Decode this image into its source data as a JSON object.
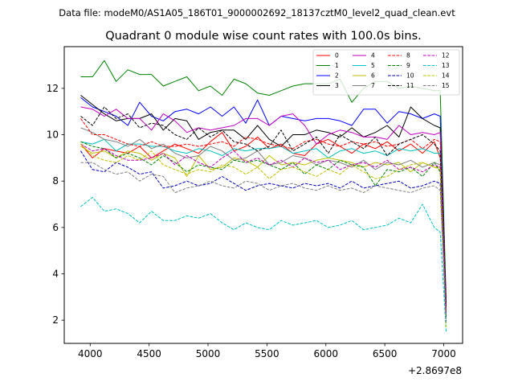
{
  "chart_data": {
    "type": "line",
    "suptitle": "Data file: modeM0/AS1A05_186T01_9000002692_18137cztM0_level2_quad_clean.evt",
    "title": "Quadrant 0 module wise count rates with 100.0s bins.",
    "xlabel": "",
    "ylabel": "",
    "x_offset_label": "+2.8697e8",
    "xlim": [
      3780,
      7160
    ],
    "ylim": [
      1.0,
      13.8
    ],
    "xticks": [
      4000,
      4500,
      5000,
      5500,
      6000,
      6500,
      7000
    ],
    "yticks": [
      2,
      4,
      6,
      8,
      10,
      12
    ],
    "x": [
      3920,
      4020,
      4120,
      4220,
      4320,
      4420,
      4520,
      4620,
      4720,
      4820,
      4920,
      5020,
      5120,
      5220,
      5320,
      5420,
      5520,
      5620,
      5720,
      5820,
      5920,
      6020,
      6120,
      6220,
      6320,
      6420,
      6520,
      6620,
      6720,
      6820,
      6920,
      6970,
      7020
    ],
    "legend_position": "upper right",
    "series": [
      {
        "name": "0",
        "color": "#ff0000",
        "dash": "solid",
        "values": [
          9.6,
          9.0,
          9.4,
          9.3,
          9.2,
          9.5,
          9.0,
          9.3,
          9.6,
          9.4,
          9.2,
          9.7,
          10.1,
          9.3,
          9.5,
          9.9,
          9.4,
          9.6,
          9.2,
          9.1,
          9.6,
          9.8,
          9.5,
          9.2,
          9.6,
          9.4,
          9.7,
          9.3,
          9.6,
          9.2,
          9.7,
          9.0,
          2.5
        ]
      },
      {
        "name": "1",
        "color": "#008000",
        "dash": "solid",
        "values": [
          12.5,
          12.5,
          13.2,
          12.3,
          12.8,
          12.6,
          12.6,
          12.1,
          12.3,
          12.5,
          11.9,
          12.1,
          11.7,
          12.4,
          12.2,
          11.8,
          11.7,
          11.9,
          12.1,
          12.2,
          12.2,
          12.2,
          12.4,
          11.4,
          12.0,
          12.3,
          12.3,
          12.0,
          12.1,
          12.0,
          11.9,
          11.9,
          2.9
        ]
      },
      {
        "name": "2",
        "color": "#0000ff",
        "dash": "solid",
        "values": [
          11.6,
          11.2,
          11.0,
          10.8,
          10.4,
          11.4,
          10.8,
          10.6,
          11.0,
          11.1,
          10.9,
          11.2,
          10.8,
          11.2,
          10.5,
          11.5,
          10.4,
          10.8,
          10.7,
          10.6,
          10.7,
          10.7,
          10.6,
          10.4,
          11.1,
          11.1,
          10.5,
          11.0,
          10.9,
          10.7,
          10.9,
          10.8,
          2.6
        ]
      },
      {
        "name": "3",
        "color": "#000000",
        "dash": "solid",
        "values": [
          11.7,
          11.3,
          10.9,
          10.6,
          10.7,
          10.7,
          10.9,
          10.2,
          10.7,
          10.6,
          9.8,
          10.1,
          10.2,
          10.2,
          9.8,
          10.4,
          9.8,
          9.5,
          10.0,
          10.0,
          10.2,
          10.1,
          9.9,
          10.3,
          9.9,
          10.1,
          10.4,
          9.9,
          11.2,
          10.7,
          10.4,
          10.3,
          2.7
        ]
      },
      {
        "name": "4",
        "color": "#bf00bf",
        "dash": "solid",
        "values": [
          11.2,
          11.1,
          10.8,
          11.1,
          10.7,
          10.7,
          10.2,
          10.9,
          10.6,
          10.1,
          10.3,
          10.2,
          10.3,
          10.4,
          10.7,
          10.7,
          10.4,
          10.8,
          10.9,
          10.4,
          9.6,
          10.0,
          10.2,
          10.1,
          9.9,
          9.9,
          9.8,
          10.4,
          10.0,
          10.1,
          10.0,
          10.1,
          2.4
        ]
      },
      {
        "name": "5",
        "color": "#00bfbf",
        "dash": "solid",
        "values": [
          9.7,
          9.6,
          9.8,
          9.3,
          9.6,
          9.6,
          9.5,
          9.5,
          9.3,
          9.2,
          9.4,
          9.3,
          9.1,
          9.4,
          9.3,
          9.4,
          9.4,
          9.5,
          9.2,
          9.3,
          9.4,
          9.0,
          9.3,
          9.4,
          9.2,
          9.3,
          9.1,
          9.4,
          9.3,
          9.4,
          9.2,
          9.2,
          2.2
        ]
      },
      {
        "name": "6",
        "color": "#bfbf00",
        "dash": "solid",
        "values": [
          9.5,
          9.2,
          9.3,
          9.0,
          9.3,
          9.2,
          8.9,
          9.2,
          9.0,
          8.2,
          9.1,
          8.5,
          8.6,
          9.0,
          8.9,
          8.6,
          9.1,
          8.7,
          8.8,
          8.7,
          8.9,
          9.0,
          8.9,
          8.8,
          8.6,
          8.8,
          8.7,
          8.8,
          8.4,
          8.8,
          8.6,
          8.6,
          2.3
        ]
      },
      {
        "name": "7",
        "color": "#808080",
        "dash": "solid",
        "values": [
          10.3,
          10.1,
          9.8,
          9.7,
          9.5,
          9.8,
          9.4,
          9.6,
          9.2,
          9.0,
          9.1,
          9.5,
          9.3,
          8.9,
          9.0,
          9.3,
          8.7,
          8.8,
          9.1,
          9.0,
          8.7,
          8.9,
          8.8,
          8.6,
          8.9,
          8.5,
          8.8,
          8.7,
          8.9,
          8.6,
          8.8,
          8.7,
          2.2
        ]
      },
      {
        "name": "8",
        "color": "#ff0000",
        "dash": "dashed",
        "values": [
          10.7,
          10.0,
          10.0,
          9.8,
          9.6,
          9.5,
          9.7,
          9.5,
          9.5,
          9.6,
          9.5,
          9.6,
          9.7,
          9.5,
          9.9,
          9.8,
          9.6,
          9.5,
          9.4,
          9.7,
          9.8,
          9.6,
          9.5,
          9.7,
          9.6,
          9.7,
          9.5,
          9.6,
          9.8,
          9.4,
          9.8,
          9.7,
          2.4
        ]
      },
      {
        "name": "9",
        "color": "#008000",
        "dash": "dashed",
        "values": [
          9.7,
          9.5,
          9.4,
          9.0,
          9.2,
          9.0,
          8.7,
          9.1,
          8.8,
          8.4,
          8.7,
          8.6,
          8.5,
          8.9,
          8.8,
          8.9,
          8.7,
          8.5,
          8.8,
          8.3,
          8.7,
          8.5,
          8.9,
          8.7,
          8.6,
          7.8,
          8.5,
          8.4,
          8.6,
          8.2,
          8.8,
          8.4,
          2.1
        ]
      },
      {
        "name": "10",
        "color": "#0000bf",
        "dash": "dashed",
        "values": [
          9.3,
          8.5,
          8.4,
          8.8,
          8.6,
          8.3,
          8.4,
          7.7,
          7.8,
          8.0,
          7.8,
          7.9,
          8.2,
          7.9,
          7.6,
          7.8,
          7.9,
          7.8,
          7.7,
          7.9,
          7.8,
          7.9,
          7.7,
          8.0,
          7.7,
          7.8,
          7.9,
          8.0,
          7.7,
          7.8,
          8.0,
          7.9,
          1.9
        ]
      },
      {
        "name": "11",
        "color": "#000000",
        "dash": "dashed",
        "values": [
          10.8,
          10.4,
          11.2,
          10.7,
          10.9,
          10.3,
          10.5,
          10.4,
          10.0,
          9.8,
          10.3,
          9.9,
          10.2,
          9.7,
          9.6,
          9.3,
          9.5,
          10.2,
          9.3,
          9.6,
          9.9,
          9.2,
          10.0,
          9.7,
          9.4,
          9.9,
          9.1,
          9.6,
          9.8,
          10.0,
          9.6,
          9.3,
          2.5
        ]
      },
      {
        "name": "12",
        "color": "#bf00bf",
        "dash": "dashed",
        "values": [
          9.6,
          9.3,
          9.4,
          9.1,
          8.9,
          8.9,
          9.0,
          9.2,
          8.7,
          9.1,
          8.8,
          8.6,
          9.0,
          9.3,
          8.8,
          9.0,
          8.7,
          8.9,
          8.6,
          9.0,
          8.8,
          8.9,
          8.5,
          8.7,
          8.8,
          8.6,
          8.9,
          8.5,
          8.6,
          8.4,
          8.7,
          8.6,
          2.3
        ]
      },
      {
        "name": "13",
        "color": "#00bfbf",
        "dash": "dashed",
        "values": [
          6.9,
          7.3,
          6.7,
          6.8,
          6.6,
          6.2,
          6.7,
          6.3,
          6.3,
          6.5,
          6.4,
          6.6,
          6.2,
          5.9,
          6.2,
          6.0,
          5.9,
          6.3,
          6.1,
          6.2,
          6.3,
          6.0,
          6.1,
          6.3,
          5.9,
          6.0,
          6.1,
          6.4,
          6.2,
          7.0,
          6.0,
          5.8,
          1.5
        ]
      },
      {
        "name": "14",
        "color": "#bfbf00",
        "dash": "dashed",
        "values": [
          9.6,
          9.1,
          8.9,
          8.8,
          9.1,
          8.9,
          9.3,
          8.7,
          8.5,
          8.3,
          8.5,
          8.4,
          8.7,
          8.6,
          8.3,
          8.6,
          8.1,
          8.5,
          8.6,
          8.4,
          8.2,
          8.5,
          8.3,
          8.7,
          8.4,
          8.1,
          8.2,
          8.5,
          8.7,
          8.8,
          8.6,
          8.5,
          1.7
        ]
      },
      {
        "name": "15",
        "color": "#808080",
        "dash": "dashed",
        "values": [
          8.8,
          8.8,
          8.5,
          8.3,
          8.4,
          8.0,
          8.3,
          8.2,
          7.5,
          7.7,
          7.8,
          8.0,
          7.8,
          7.7,
          8.0,
          7.9,
          7.6,
          7.8,
          7.9,
          7.7,
          7.6,
          7.8,
          7.6,
          7.7,
          7.5,
          7.8,
          7.7,
          7.6,
          7.5,
          7.7,
          7.8,
          7.6,
          1.9
        ]
      }
    ]
  }
}
